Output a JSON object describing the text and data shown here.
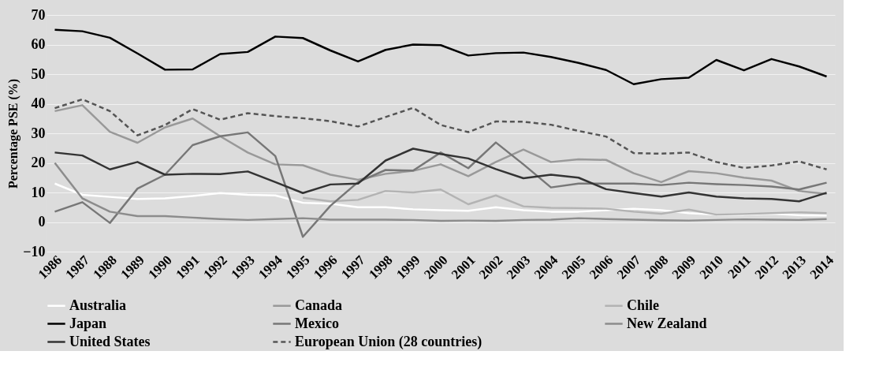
{
  "chart_data": {
    "type": "line",
    "ylabel": "Percentage PSE (%)",
    "categories": [
      "1986",
      "1987",
      "1988",
      "1989",
      "1990",
      "1991",
      "1992",
      "1993",
      "1994",
      "1995",
      "1996",
      "1997",
      "1998",
      "1999",
      "2000",
      "2001",
      "2002",
      "2003",
      "2004",
      "2005",
      "2006",
      "2007",
      "2008",
      "2009",
      "2010",
      "2011",
      "2012",
      "2013",
      "2014"
    ],
    "ylim": [
      -10,
      70
    ],
    "yticks": [
      -10,
      0,
      10,
      20,
      30,
      40,
      50,
      60,
      70
    ],
    "grid": "y",
    "legend": "bottom",
    "line_style": "solid",
    "marker": "none",
    "series": [
      {
        "name": "Australia",
        "color": "#ffffff",
        "values": [
          13,
          9.2,
          8.5,
          7.8,
          8,
          8.8,
          9.8,
          9.2,
          9,
          6.5,
          6.2,
          5,
          5,
          4.3,
          4,
          3.8,
          5,
          4,
          3.5,
          3.5,
          4,
          4.5,
          4,
          3,
          2.5,
          2.5,
          2.8,
          2.3,
          2.2
        ]
      },
      {
        "name": "Canada",
        "color": "#999999",
        "values": [
          37.5,
          39.5,
          30.5,
          26.8,
          32,
          35,
          29,
          23.5,
          19.5,
          19.2,
          16,
          14.3,
          16.3,
          17.3,
          19.5,
          15.5,
          20.3,
          24.5,
          20.3,
          21.2,
          21,
          16.5,
          13.5,
          17.2,
          16.5,
          15,
          14,
          10.5,
          9.5
        ]
      },
      {
        "name": "Chile",
        "color": "#b3b3b3",
        "values": [
          null,
          null,
          null,
          null,
          null,
          null,
          null,
          null,
          null,
          8.2,
          7,
          7.5,
          10.5,
          10,
          11,
          6,
          9,
          5.3,
          4.8,
          4.7,
          4.5,
          3.5,
          2.8,
          4.2,
          2.5,
          2.7,
          3,
          3.3,
          3
        ]
      },
      {
        "name": "Japan",
        "color": "#000000",
        "values": [
          65,
          64.5,
          62.3,
          57,
          51.5,
          51.6,
          56.8,
          57.5,
          62.7,
          62.2,
          58,
          54.3,
          58.2,
          60,
          59.8,
          56.3,
          57.1,
          57.3,
          55.8,
          53.8,
          51.4,
          46.6,
          48.3,
          48.8,
          54.8,
          51.3,
          55.1,
          52.6,
          49.2
        ]
      },
      {
        "name": "Mexico",
        "color": "#777777",
        "values": [
          3.5,
          6.7,
          -0.3,
          11.3,
          16,
          26,
          29,
          30.3,
          22.3,
          -5,
          5.5,
          13.5,
          17.6,
          17.4,
          23.5,
          18.2,
          26.9,
          19.5,
          11.7,
          13,
          13,
          13,
          12.5,
          13.3,
          12.8,
          12.5,
          12,
          11,
          13.3
        ]
      },
      {
        "name": "New Zealand",
        "color": "#8c8c8c",
        "values": [
          20,
          8,
          3.5,
          2,
          2,
          1.5,
          1,
          0.7,
          1,
          1.3,
          0.8,
          0.8,
          0.8,
          0.7,
          0.4,
          0.5,
          0.4,
          0.7,
          0.8,
          1.3,
          1,
          0.8,
          0.6,
          0.5,
          0.7,
          0.9,
          0.8,
          0.7,
          1
        ]
      },
      {
        "name": "United States",
        "color": "#333333",
        "values": [
          23.5,
          22.5,
          17.8,
          20.3,
          16,
          16.3,
          16.2,
          17.1,
          13.5,
          9.8,
          12.7,
          13,
          20.8,
          24.8,
          23,
          21.5,
          17.9,
          14.8,
          16,
          15,
          11.1,
          9.8,
          8.6,
          10,
          8.6,
          8,
          7.8,
          7,
          9.9
        ]
      },
      {
        "name": "European Union (28 countries)",
        "color": "#555555",
        "line_style": "dashed",
        "values": [
          38.5,
          41.5,
          37.5,
          29.3,
          32.8,
          38.2,
          34.6,
          36.8,
          35.8,
          35.1,
          34.1,
          32.3,
          35.5,
          38.6,
          32.8,
          30.4,
          34,
          33.9,
          32.9,
          30.8,
          28.9,
          23.3,
          23.1,
          23.5,
          20.3,
          18.3,
          19.1,
          20.5,
          17.8
        ]
      }
    ]
  }
}
